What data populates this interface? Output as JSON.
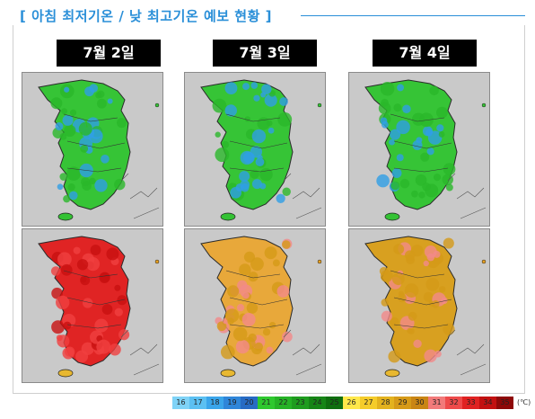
{
  "title": "[ 아침 최저기온 / 낮 최고기온 예보 현황 ]",
  "days": [
    "7월 2일",
    "7월 3일",
    "7월 4일"
  ],
  "map_rows": [
    "min_temp",
    "max_temp"
  ],
  "colors": {
    "title_blue": "#2a8fd8",
    "sea_gray": "#c9c9c9"
  },
  "legend": {
    "values": [
      "16",
      "17",
      "18",
      "19",
      "20",
      "21",
      "22",
      "23",
      "24",
      "25",
      "26",
      "27",
      "28",
      "29",
      "30",
      "31",
      "32",
      "33",
      "34",
      "35"
    ],
    "colors": [
      "#7fd3f7",
      "#5bc0f2",
      "#3aa5ea",
      "#2f86d9",
      "#276bc4",
      "#2ec82e",
      "#25b225",
      "#1e9c1e",
      "#168516",
      "#0f6e0f",
      "#ffe84a",
      "#f5cc2a",
      "#e3b21e",
      "#d69a18",
      "#c98514",
      "#f27a7a",
      "#ee4a4a",
      "#e02222",
      "#c21010",
      "#8e0808"
    ],
    "unit": "(℃)"
  }
}
